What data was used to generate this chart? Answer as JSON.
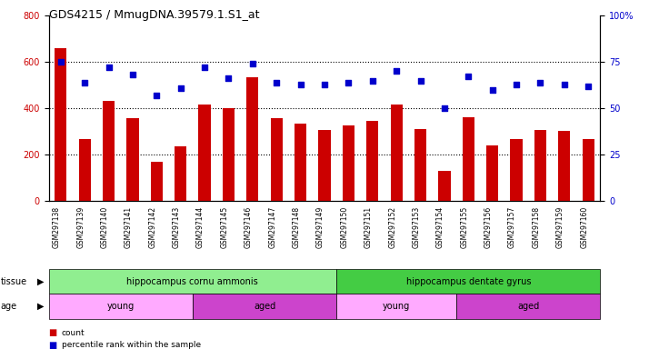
{
  "title": "GDS4215 / MmugDNA.39579.1.S1_at",
  "samples": [
    "GSM297138",
    "GSM297139",
    "GSM297140",
    "GSM297141",
    "GSM297142",
    "GSM297143",
    "GSM297144",
    "GSM297145",
    "GSM297146",
    "GSM297147",
    "GSM297148",
    "GSM297149",
    "GSM297150",
    "GSM297151",
    "GSM297152",
    "GSM297153",
    "GSM297154",
    "GSM297155",
    "GSM297156",
    "GSM297157",
    "GSM297158",
    "GSM297159",
    "GSM297160"
  ],
  "counts": [
    660,
    265,
    430,
    355,
    170,
    235,
    415,
    400,
    535,
    355,
    335,
    305,
    325,
    345,
    415,
    310,
    130,
    360,
    240,
    265,
    305,
    300,
    265
  ],
  "percentiles": [
    75,
    64,
    72,
    68,
    57,
    61,
    72,
    66,
    74,
    64,
    63,
    63,
    64,
    65,
    70,
    65,
    50,
    67,
    60,
    63,
    64,
    63,
    62
  ],
  "bar_color": "#cc0000",
  "dot_color": "#0000cc",
  "ylim_left": [
    0,
    800
  ],
  "ylim_right": [
    0,
    100
  ],
  "yticks_left": [
    0,
    200,
    400,
    600,
    800
  ],
  "yticks_right": [
    0,
    25,
    50,
    75,
    100
  ],
  "tissue_groups": [
    {
      "label": "hippocampus cornu ammonis",
      "start": 0,
      "end": 12,
      "color": "#90ee90"
    },
    {
      "label": "hippocampus dentate gyrus",
      "start": 12,
      "end": 23,
      "color": "#44cc44"
    }
  ],
  "age_groups": [
    {
      "label": "young",
      "start": 0,
      "end": 6,
      "color": "#ffaaff"
    },
    {
      "label": "aged",
      "start": 6,
      "end": 12,
      "color": "#cc44cc"
    },
    {
      "label": "young",
      "start": 12,
      "end": 17,
      "color": "#ffaaff"
    },
    {
      "label": "aged",
      "start": 17,
      "end": 23,
      "color": "#cc44cc"
    }
  ],
  "xtick_bg": "#cccccc",
  "plot_bg": "#ffffff",
  "grid_color": "#000000",
  "grid_yticks": [
    200,
    400,
    600
  ],
  "title_fontsize": 9,
  "tick_fontsize": 7,
  "label_fontsize": 7,
  "bar_width": 0.5
}
